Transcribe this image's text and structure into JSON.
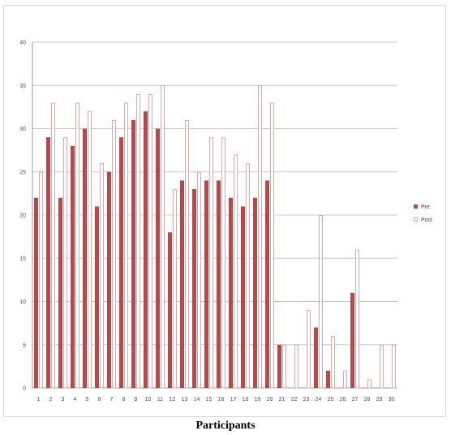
{
  "chart_data": {
    "type": "bar",
    "title": "",
    "xlabel": "Participants",
    "ylabel": "",
    "ylim": [
      0,
      40
    ],
    "yticks": [
      0,
      5,
      10,
      15,
      20,
      25,
      30,
      35,
      40
    ],
    "grid": "horizontal",
    "legend_position": "right",
    "categories": [
      "1",
      "2",
      "3",
      "4",
      "5",
      "6",
      "7",
      "8",
      "9",
      "10",
      "11",
      "12",
      "13",
      "14",
      "15",
      "16",
      "17",
      "18",
      "19",
      "20",
      "21",
      "22",
      "23",
      "24",
      "25",
      "26",
      "27",
      "28",
      "29",
      "30"
    ],
    "series": [
      {
        "name": "Pre",
        "color": "#b44a4a",
        "values": [
          22,
          29,
          22,
          28,
          30,
          21,
          25,
          29,
          31,
          32,
          30,
          18,
          24,
          23,
          24,
          24,
          22,
          21,
          22,
          24,
          5,
          0,
          0,
          7,
          2,
          0,
          11,
          0,
          0,
          0
        ]
      },
      {
        "name": "Post",
        "color": "#e8a5a5",
        "values": [
          25,
          33,
          29,
          33,
          32,
          26,
          31,
          33,
          34,
          34,
          35,
          23,
          31,
          25,
          29,
          29,
          27,
          26,
          35,
          33,
          5,
          5,
          9,
          20,
          6,
          2,
          16,
          1,
          5,
          5
        ]
      }
    ]
  }
}
